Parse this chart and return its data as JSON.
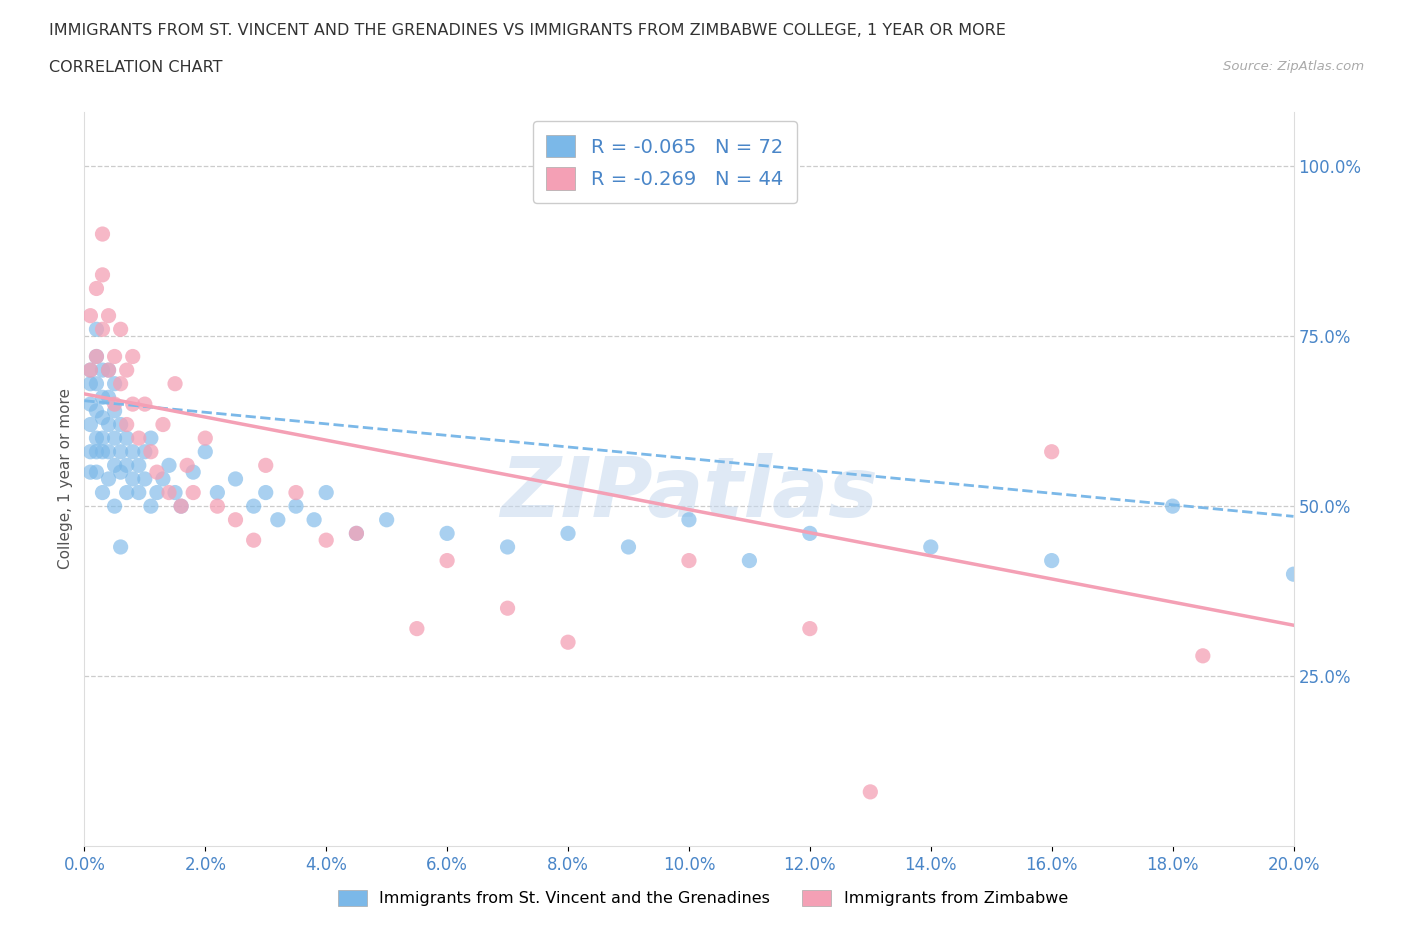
{
  "title_line1": "IMMIGRANTS FROM ST. VINCENT AND THE GRENADINES VS IMMIGRANTS FROM ZIMBABWE COLLEGE, 1 YEAR OR MORE",
  "title_line2": "CORRELATION CHART",
  "source_text": "Source: ZipAtlas.com",
  "xlabel_ticks": [
    "0.0%",
    "2.0%",
    "4.0%",
    "6.0%",
    "8.0%",
    "10.0%",
    "12.0%",
    "14.0%",
    "16.0%",
    "18.0%",
    "20.0%"
  ],
  "ylabel": "College, 1 year or more",
  "ylabel_ticks_right": [
    "100.0%",
    "75.0%",
    "50.0%",
    "25.0%"
  ],
  "ylabel_ticks_vals": [
    1.0,
    0.75,
    0.5,
    0.25
  ],
  "xlim": [
    0.0,
    0.2
  ],
  "ylim": [
    0.0,
    1.08
  ],
  "blue_R": -0.065,
  "blue_N": 72,
  "pink_R": -0.269,
  "pink_N": 44,
  "blue_color": "#7bb8e8",
  "pink_color": "#f4a0b5",
  "legend_label_blue": "Immigrants from St. Vincent and the Grenadines",
  "legend_label_pink": "Immigrants from Zimbabwe",
  "watermark": "ZIPatlas",
  "blue_trend_x0": 0.0,
  "blue_trend_y0": 0.655,
  "blue_trend_x1": 0.2,
  "blue_trend_y1": 0.485,
  "pink_trend_x0": 0.0,
  "pink_trend_y0": 0.665,
  "pink_trend_x1": 0.2,
  "pink_trend_y1": 0.325,
  "blue_scatter_x": [
    0.001,
    0.001,
    0.001,
    0.001,
    0.001,
    0.001,
    0.002,
    0.002,
    0.002,
    0.002,
    0.002,
    0.002,
    0.002,
    0.003,
    0.003,
    0.003,
    0.003,
    0.003,
    0.003,
    0.004,
    0.004,
    0.004,
    0.004,
    0.004,
    0.005,
    0.005,
    0.005,
    0.005,
    0.005,
    0.006,
    0.006,
    0.006,
    0.006,
    0.007,
    0.007,
    0.007,
    0.008,
    0.008,
    0.009,
    0.009,
    0.01,
    0.01,
    0.011,
    0.011,
    0.012,
    0.013,
    0.014,
    0.015,
    0.016,
    0.018,
    0.02,
    0.022,
    0.025,
    0.028,
    0.03,
    0.032,
    0.035,
    0.038,
    0.04,
    0.045,
    0.05,
    0.06,
    0.07,
    0.08,
    0.09,
    0.1,
    0.11,
    0.12,
    0.14,
    0.16,
    0.18,
    0.2
  ],
  "blue_scatter_y": [
    0.62,
    0.65,
    0.58,
    0.7,
    0.55,
    0.68,
    0.6,
    0.64,
    0.68,
    0.72,
    0.55,
    0.58,
    0.76,
    0.6,
    0.63,
    0.66,
    0.7,
    0.52,
    0.58,
    0.58,
    0.62,
    0.66,
    0.7,
    0.54,
    0.56,
    0.6,
    0.64,
    0.5,
    0.68,
    0.55,
    0.58,
    0.62,
    0.44,
    0.56,
    0.6,
    0.52,
    0.54,
    0.58,
    0.52,
    0.56,
    0.54,
    0.58,
    0.5,
    0.6,
    0.52,
    0.54,
    0.56,
    0.52,
    0.5,
    0.55,
    0.58,
    0.52,
    0.54,
    0.5,
    0.52,
    0.48,
    0.5,
    0.48,
    0.52,
    0.46,
    0.48,
    0.46,
    0.44,
    0.46,
    0.44,
    0.48,
    0.42,
    0.46,
    0.44,
    0.42,
    0.5,
    0.4
  ],
  "pink_scatter_x": [
    0.001,
    0.001,
    0.002,
    0.002,
    0.003,
    0.003,
    0.003,
    0.004,
    0.004,
    0.005,
    0.005,
    0.006,
    0.006,
    0.007,
    0.007,
    0.008,
    0.008,
    0.009,
    0.01,
    0.011,
    0.012,
    0.013,
    0.014,
    0.015,
    0.016,
    0.017,
    0.018,
    0.02,
    0.022,
    0.025,
    0.028,
    0.03,
    0.035,
    0.04,
    0.045,
    0.055,
    0.06,
    0.07,
    0.08,
    0.1,
    0.12,
    0.13,
    0.16,
    0.185
  ],
  "pink_scatter_y": [
    0.7,
    0.78,
    0.72,
    0.82,
    0.76,
    0.84,
    0.9,
    0.7,
    0.78,
    0.65,
    0.72,
    0.68,
    0.76,
    0.62,
    0.7,
    0.65,
    0.72,
    0.6,
    0.65,
    0.58,
    0.55,
    0.62,
    0.52,
    0.68,
    0.5,
    0.56,
    0.52,
    0.6,
    0.5,
    0.48,
    0.45,
    0.56,
    0.52,
    0.45,
    0.46,
    0.32,
    0.42,
    0.35,
    0.3,
    0.42,
    0.32,
    0.08,
    0.58,
    0.28
  ]
}
